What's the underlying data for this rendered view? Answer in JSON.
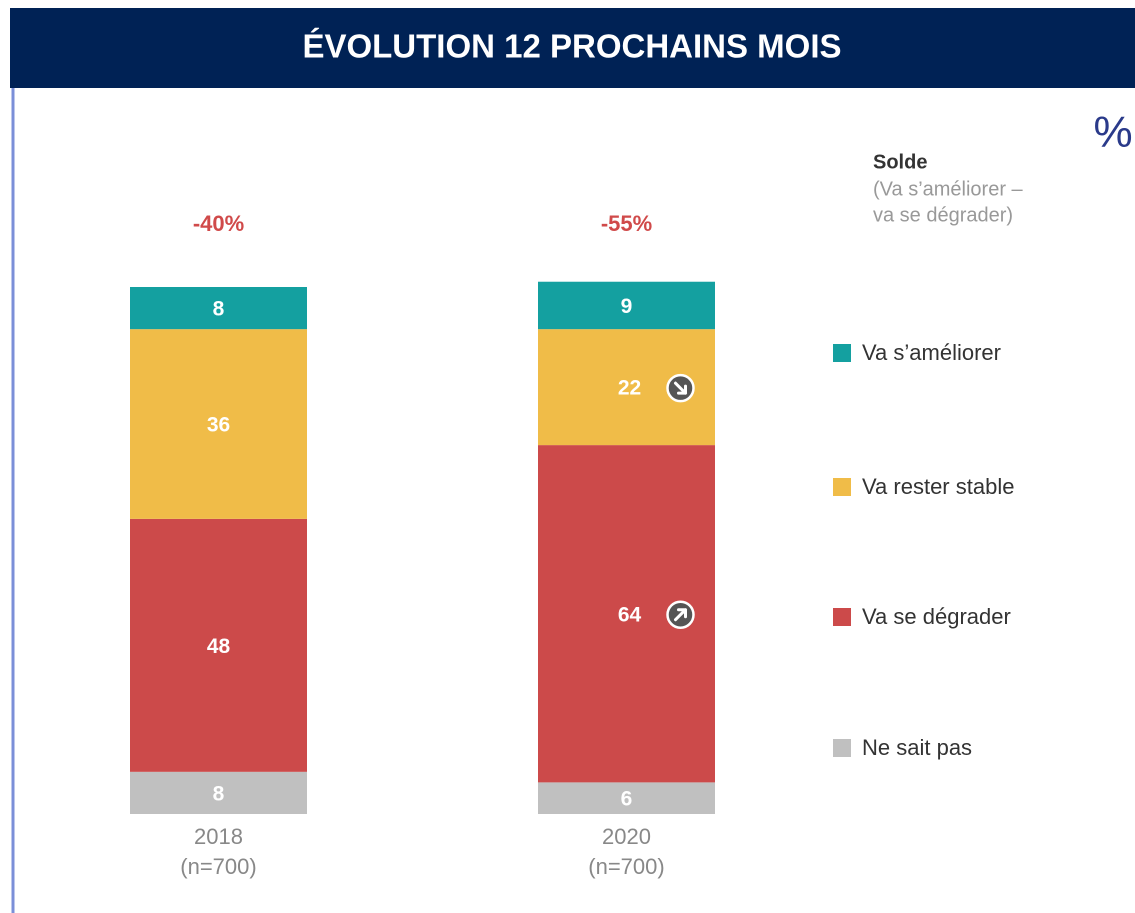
{
  "chart_data": {
    "type": "stacked_bar",
    "title": "ÉVOLUTION 12 PROCHAINS MOIS",
    "unit": "%",
    "categories": [
      "2018",
      "2020"
    ],
    "category_notes": [
      "(n=700)",
      "(n=700)"
    ],
    "series": [
      {
        "name": "Ne sait pas",
        "color": "#c0c0c0",
        "values": [
          8,
          6
        ]
      },
      {
        "name": "Va se dégrader",
        "color": "#cc4a4a",
        "values": [
          48,
          64
        ],
        "trends": [
          null,
          "up"
        ]
      },
      {
        "name": "Va rester stable",
        "color": "#f0bc48",
        "values": [
          36,
          22
        ],
        "trends": [
          null,
          "down"
        ]
      },
      {
        "name": "Va s’améliorer",
        "color": "#14a0a0",
        "values": [
          8,
          9
        ]
      }
    ],
    "balance": {
      "title": "Solde",
      "subtitle": [
        "(Va s’améliorer –",
        "va se dégrader)"
      ],
      "values": [
        -40,
        -55
      ],
      "value_labels": [
        "-40%",
        "-55%"
      ],
      "color": "#d04a4a"
    }
  }
}
